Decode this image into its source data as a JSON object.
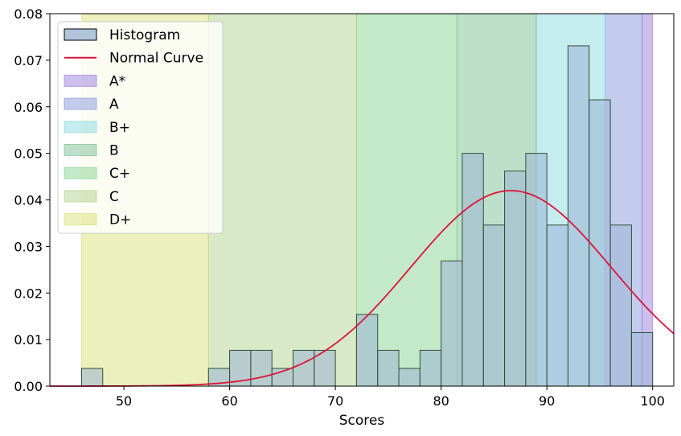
{
  "chart_data": {
    "type": "bar",
    "xlabel": "Scores",
    "ylabel": "",
    "xlim": [
      43,
      102
    ],
    "ylim": [
      0,
      0.08
    ],
    "xticks": [
      50,
      60,
      70,
      80,
      90,
      100
    ],
    "yticks": [
      "0.00",
      "0.01",
      "0.02",
      "0.03",
      "0.04",
      "0.05",
      "0.06",
      "0.07",
      "0.08"
    ],
    "grade_bands": [
      {
        "name": "A*",
        "start": 99,
        "end": 100,
        "color": "#9370DB"
      },
      {
        "name": "A",
        "start": 95.5,
        "end": 99,
        "color": "#7B8FD6"
      },
      {
        "name": "B+",
        "start": 89,
        "end": 95.5,
        "color": "#7FD4DC"
      },
      {
        "name": "B",
        "start": 81.5,
        "end": 89,
        "color": "#6FB98A"
      },
      {
        "name": "C+",
        "start": 72,
        "end": 81.5,
        "color": "#7CCF86"
      },
      {
        "name": "C",
        "start": 58,
        "end": 72,
        "color": "#AACB80"
      },
      {
        "name": "D+",
        "start": 46,
        "end": 58,
        "color": "#D4DE6A"
      }
    ],
    "histogram": {
      "name": "Histogram",
      "bin_width": 2,
      "bin_starts": [
        46,
        48,
        50,
        52,
        54,
        56,
        58,
        60,
        62,
        64,
        66,
        68,
        70,
        72,
        74,
        76,
        78,
        80,
        82,
        84,
        86,
        88,
        90,
        92,
        94,
        96,
        98
      ],
      "density": [
        0.0038,
        0,
        0,
        0,
        0,
        0,
        0.0038,
        0.0077,
        0.0077,
        0.0038,
        0.0077,
        0.0077,
        0,
        0.0154,
        0.0077,
        0.0038,
        0.0077,
        0.0269,
        0.05,
        0.0346,
        0.0462,
        0.05,
        0.0346,
        0.0731,
        0.0615,
        0.0346,
        0.0115
      ],
      "fill": "#9DB5D3",
      "edge": "#2F4F3A"
    },
    "normal_curve": {
      "name": "Normal Curve",
      "mean": 86.6,
      "std": 9.5,
      "color": "#DC143C"
    },
    "legend": {
      "placement": "top-left",
      "entries": [
        "Histogram",
        "Normal Curve",
        "A*",
        "A",
        "B+",
        "B",
        "C+",
        "C",
        "D+"
      ]
    },
    "grid": false
  }
}
